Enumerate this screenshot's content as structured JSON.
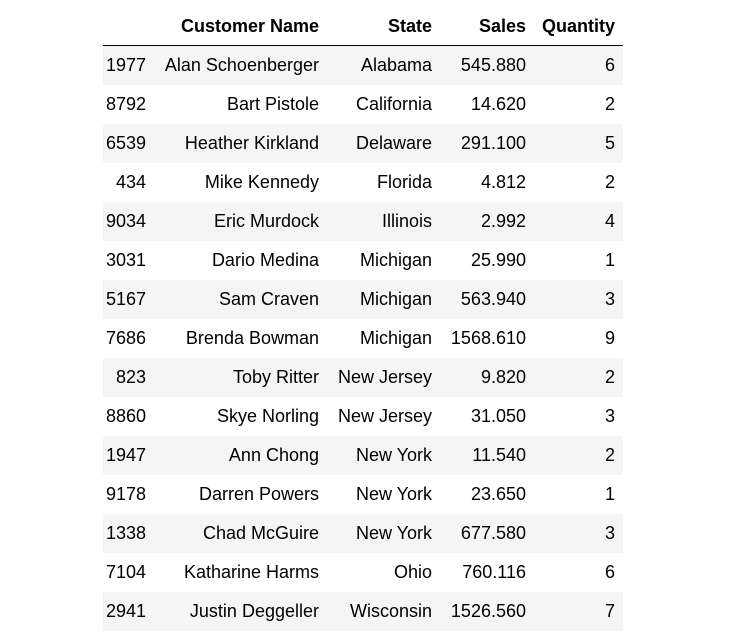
{
  "table": {
    "columns": [
      "",
      "Customer Name",
      "State",
      "Sales",
      "Quantity"
    ],
    "rows": [
      {
        "index": "1977",
        "name": "Alan Schoenberger",
        "state": "Alabama",
        "sales": "545.880",
        "quantity": "6"
      },
      {
        "index": "8792",
        "name": "Bart Pistole",
        "state": "California",
        "sales": "14.620",
        "quantity": "2"
      },
      {
        "index": "6539",
        "name": "Heather Kirkland",
        "state": "Delaware",
        "sales": "291.100",
        "quantity": "5"
      },
      {
        "index": "434",
        "name": "Mike Kennedy",
        "state": "Florida",
        "sales": "4.812",
        "quantity": "2"
      },
      {
        "index": "9034",
        "name": "Eric Murdock",
        "state": "Illinois",
        "sales": "2.992",
        "quantity": "4"
      },
      {
        "index": "3031",
        "name": "Dario Medina",
        "state": "Michigan",
        "sales": "25.990",
        "quantity": "1"
      },
      {
        "index": "5167",
        "name": "Sam Craven",
        "state": "Michigan",
        "sales": "563.940",
        "quantity": "3"
      },
      {
        "index": "7686",
        "name": "Brenda Bowman",
        "state": "Michigan",
        "sales": "1568.610",
        "quantity": "9"
      },
      {
        "index": "823",
        "name": "Toby Ritter",
        "state": "New Jersey",
        "sales": "9.820",
        "quantity": "2"
      },
      {
        "index": "8860",
        "name": "Skye Norling",
        "state": "New Jersey",
        "sales": "31.050",
        "quantity": "3"
      },
      {
        "index": "1947",
        "name": "Ann Chong",
        "state": "New York",
        "sales": "11.540",
        "quantity": "2"
      },
      {
        "index": "9178",
        "name": "Darren Powers",
        "state": "New York",
        "sales": "23.650",
        "quantity": "1"
      },
      {
        "index": "1338",
        "name": "Chad McGuire",
        "state": "New York",
        "sales": "677.580",
        "quantity": "3"
      },
      {
        "index": "7104",
        "name": "Katharine Harms",
        "state": "Ohio",
        "sales": "760.116",
        "quantity": "6"
      },
      {
        "index": "2941",
        "name": "Justin Deggeller",
        "state": "Wisconsin",
        "sales": "1526.560",
        "quantity": "7"
      }
    ]
  }
}
